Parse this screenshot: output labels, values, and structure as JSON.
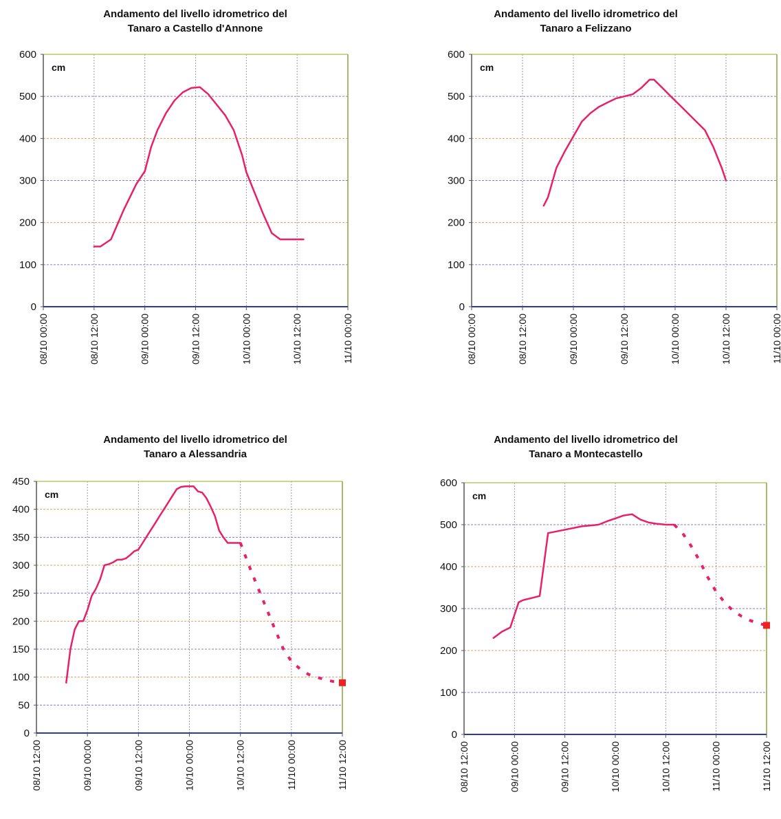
{
  "chart_data": [
    {
      "type": "line",
      "title_line1": "Andamento del livello idrometrico del",
      "title_line2": "Tanaro a Castello d'Annone",
      "unit_label": "cm",
      "ylim": [
        0,
        600
      ],
      "y_ticks": [
        0,
        100,
        200,
        300,
        400,
        500,
        600
      ],
      "x_ticks": [
        "08/10 00:00",
        "08/10 12:00",
        "09/10 00:00",
        "09/10 12:00",
        "10/10 00:00",
        "10/10 12:00",
        "11/10 00:00"
      ],
      "x_unit": "hours from 08/10 00:00",
      "xlim": [
        0,
        72
      ],
      "grid": true,
      "line_color": "#e8206a",
      "series": [
        {
          "style": "solid",
          "x": [
            12,
            13.5,
            16,
            19,
            22,
            24,
            25.5,
            27,
            29,
            31,
            33,
            35,
            37,
            39,
            41,
            43,
            45,
            47,
            48,
            50,
            52,
            54,
            56,
            58,
            59.5,
            61.5
          ],
          "y": [
            143,
            143,
            160,
            230,
            292,
            322,
            380,
            420,
            460,
            490,
            510,
            520,
            522,
            505,
            480,
            455,
            420,
            360,
            320,
            270,
            220,
            175,
            160,
            160,
            160,
            160
          ]
        }
      ]
    },
    {
      "type": "line",
      "title_line1": "Andamento del livello idrometrico del",
      "title_line2": "Tanaro a Felizzano",
      "unit_label": "cm",
      "ylim": [
        0,
        600
      ],
      "y_ticks": [
        0,
        100,
        200,
        300,
        400,
        500,
        600
      ],
      "x_ticks": [
        "08/10 00:00",
        "08/10 12:00",
        "09/10 00:00",
        "09/10 12:00",
        "10/10 00:00",
        "10/10 12:00",
        "11/10 00:00"
      ],
      "x_unit": "hours from 08/10 00:00",
      "xlim": [
        0,
        72
      ],
      "grid": true,
      "line_color": "#e8206a",
      "series": [
        {
          "style": "solid",
          "x": [
            17,
            18,
            20,
            22,
            24,
            26,
            28,
            30,
            32,
            34,
            36,
            38,
            40,
            42,
            43,
            45,
            47,
            49,
            51,
            53,
            55,
            57,
            59,
            60
          ],
          "y": [
            240,
            260,
            330,
            370,
            405,
            440,
            460,
            475,
            485,
            495,
            500,
            505,
            520,
            540,
            540,
            520,
            500,
            480,
            460,
            440,
            420,
            380,
            330,
            300
          ]
        }
      ]
    },
    {
      "type": "line",
      "title_line1": "Andamento del livello idrometrico del",
      "title_line2": "Tanaro a Alessandria",
      "unit_label": "cm",
      "ylim": [
        0,
        450
      ],
      "y_ticks": [
        0,
        50,
        100,
        150,
        200,
        250,
        300,
        350,
        400,
        450
      ],
      "x_ticks": [
        "08/10 12:00",
        "09/10 00:00",
        "09/10 12:00",
        "10/10 00:00",
        "10/10 12:00",
        "11/10 00:00",
        "11/10 12:00"
      ],
      "x_unit": "hours from 08/10 12:00",
      "xlim": [
        0,
        72
      ],
      "grid": true,
      "line_color": "#e8206a",
      "marker_color": "#ee2222",
      "series": [
        {
          "style": "solid",
          "x": [
            7,
            8,
            9,
            10,
            11,
            12,
            13,
            14,
            15,
            16,
            17,
            18,
            19,
            20,
            21,
            22,
            23,
            24,
            25,
            26,
            27,
            28,
            29,
            30,
            31,
            32,
            33,
            34,
            35,
            36,
            37,
            38,
            39,
            40,
            41,
            42,
            43,
            44,
            45,
            46,
            47,
            47.5,
            48
          ],
          "y": [
            90,
            150,
            185,
            200,
            200,
            220,
            245,
            258,
            275,
            300,
            302,
            305,
            310,
            310,
            312,
            318,
            325,
            328,
            340,
            352,
            364,
            376,
            388,
            400,
            412,
            424,
            436,
            440,
            441,
            441,
            441,
            432,
            430,
            420,
            405,
            388,
            362,
            350,
            340,
            340,
            340,
            340,
            340
          ]
        },
        {
          "style": "dashed",
          "x": [
            48,
            50,
            52,
            54,
            56,
            58,
            60,
            62,
            64,
            66,
            68,
            70,
            72
          ],
          "y": [
            340,
            300,
            262,
            225,
            188,
            152,
            128,
            115,
            105,
            100,
            95,
            92,
            90
          ]
        }
      ],
      "end_marker": {
        "x": 72,
        "y": 90
      }
    },
    {
      "type": "line",
      "title_line1": "Andamento del livello idrometrico del",
      "title_line2": "Tanaro a Montecastello",
      "unit_label": "cm",
      "ylim": [
        0,
        600
      ],
      "y_ticks": [
        0,
        100,
        200,
        300,
        400,
        500,
        600
      ],
      "x_ticks": [
        "08/10 12:00",
        "09/10 00:00",
        "09/10 12:00",
        "10/10 00:00",
        "10/10 12:00",
        "11/10 00:00",
        "11/10 12:00"
      ],
      "x_unit": "hours from 08/10 12:00",
      "xlim": [
        0,
        72
      ],
      "grid": true,
      "line_color": "#e8206a",
      "marker_color": "#ee2222",
      "series": [
        {
          "style": "solid",
          "x": [
            7,
            9,
            11,
            12,
            13,
            14,
            16,
            18,
            20,
            22,
            24,
            26,
            28,
            30,
            32,
            34,
            36,
            38,
            40,
            42,
            44,
            46,
            48,
            50
          ],
          "y": [
            230,
            245,
            255,
            285,
            315,
            320,
            325,
            330,
            480,
            484,
            488,
            492,
            496,
            498,
            500,
            508,
            515,
            522,
            525,
            512,
            505,
            502,
            500,
            500
          ]
        },
        {
          "style": "dashed",
          "x": [
            50,
            52,
            54,
            56,
            58,
            60,
            62,
            64,
            66,
            68,
            70,
            72
          ],
          "y": [
            500,
            480,
            450,
            415,
            375,
            340,
            315,
            295,
            282,
            272,
            265,
            260
          ]
        }
      ],
      "end_marker": {
        "x": 72,
        "y": 260
      }
    }
  ]
}
